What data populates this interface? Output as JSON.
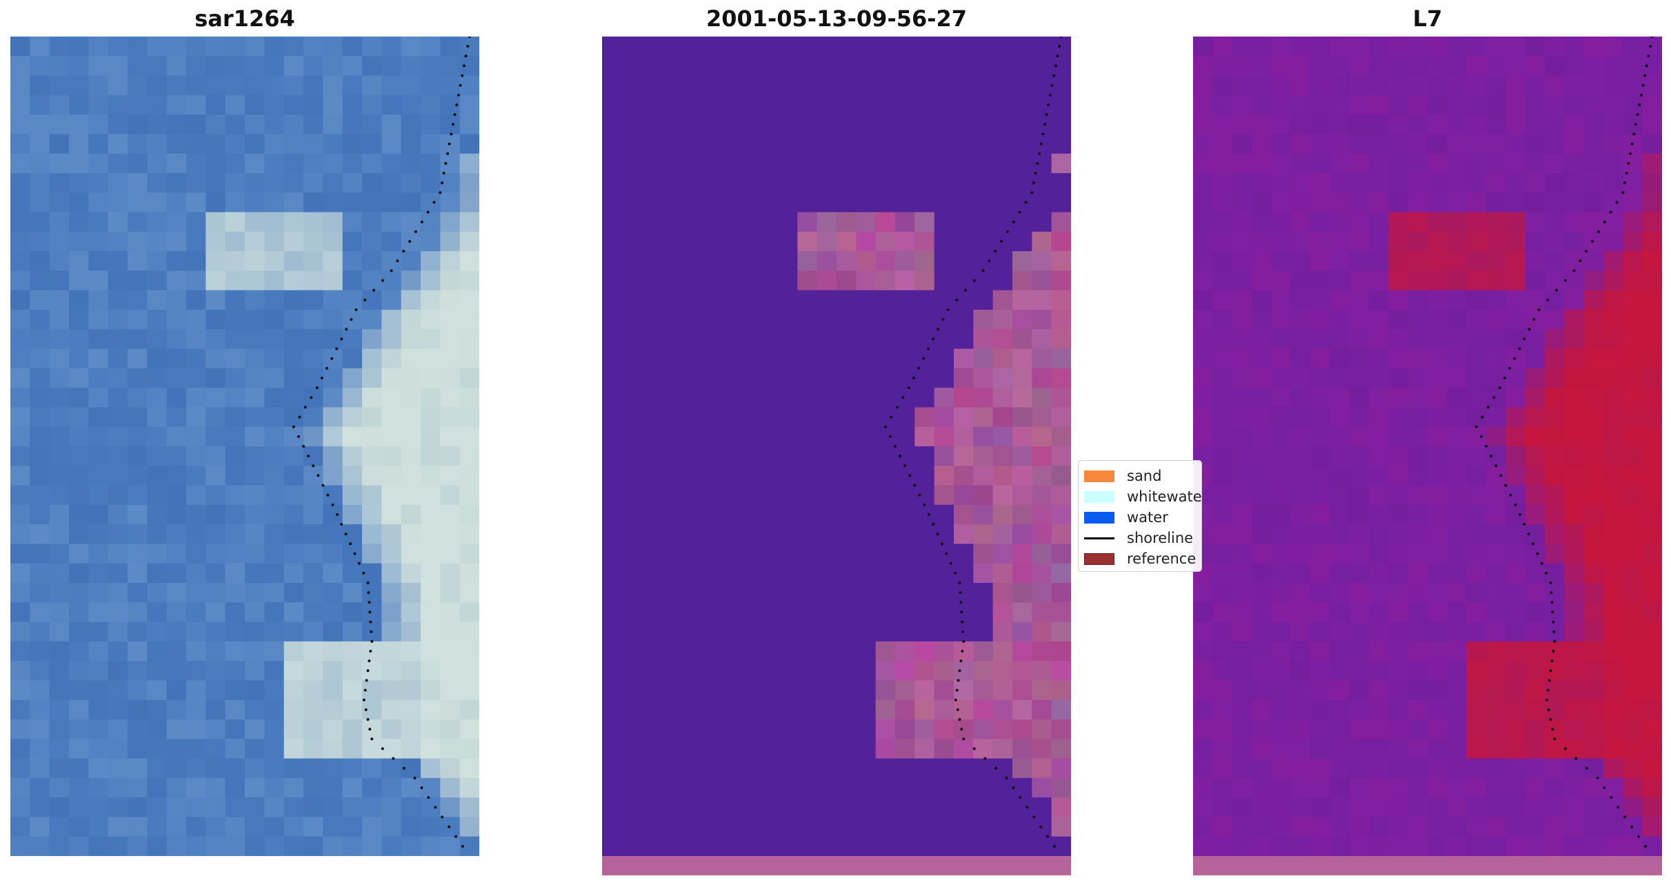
{
  "panels": [
    {
      "title": "sar1264",
      "kind": "rgb"
    },
    {
      "title": "2001-05-13-09-56-27",
      "kind": "classified"
    },
    {
      "title": "L7",
      "kind": "index"
    }
  ],
  "legend": {
    "items": [
      {
        "label": "sand",
        "color": "#f5883a",
        "type": "patch"
      },
      {
        "label": "whitewater",
        "color": "#ccffff",
        "type": "patch"
      },
      {
        "label": "water",
        "color": "#0a5cf0",
        "type": "patch"
      },
      {
        "label": "shoreline",
        "color": "#000000",
        "type": "line"
      },
      {
        "label": "reference",
        "color": "#9b3030",
        "type": "patch"
      }
    ]
  },
  "colors": {
    "rgb_water": "#4a7bbf",
    "rgb_whitewater": "#dde8f2",
    "classified_water": "#53229a",
    "classified_land": "#b06a9e",
    "index_low": "#7a1fa3",
    "index_high": "#c4103e"
  }
}
